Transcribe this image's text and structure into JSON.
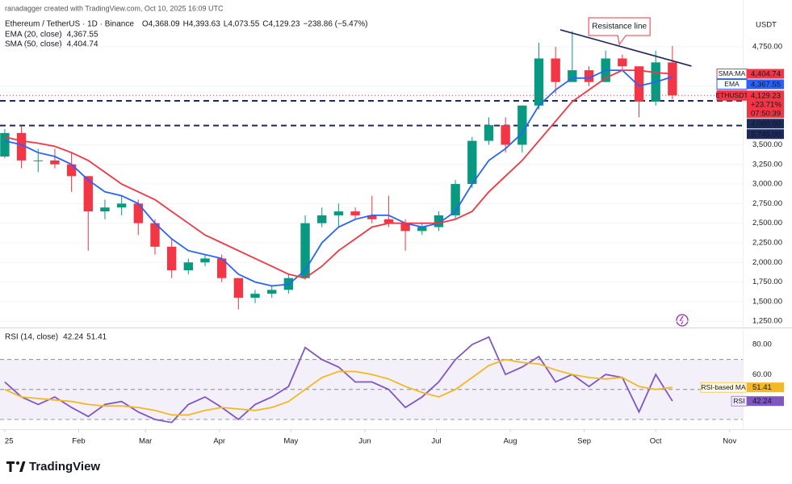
{
  "header": {
    "credit": "ranadagger created with TradingView.com, Oct 10, 2025 16:09 UTC"
  },
  "footer": {
    "brand": "TradingView"
  },
  "chart_data": [
    {
      "type": "candlestick",
      "title": "Ethereum / TetherUS · 1D · Binance",
      "ohlc_fields": [
        {
          "key": "O",
          "value": "4,368.09"
        },
        {
          "key": "H",
          "value": "4,393.63"
        },
        {
          "key": "L",
          "value": "4,073.55"
        },
        {
          "key": "C",
          "value": "4,129.23"
        }
      ],
      "change": "−238.86 (−5.47%)",
      "x": [
        0,
        7,
        14,
        21,
        28,
        35,
        42,
        49,
        56,
        63,
        70,
        77,
        84,
        91,
        98,
        105,
        112,
        119,
        126,
        133,
        140,
        147,
        154,
        161,
        168,
        175,
        182,
        189,
        196,
        203,
        210,
        217,
        224,
        231,
        238,
        245,
        252,
        259,
        266,
        273,
        280
      ],
      "open": [
        3350,
        3650,
        3300,
        3300,
        3250,
        3100,
        2650,
        2700,
        2750,
        2500,
        2200,
        1900,
        2000,
        2050,
        1800,
        1550,
        1600,
        1650,
        1800,
        2500,
        2600,
        2650,
        2600,
        2550,
        2500,
        2400,
        2450,
        2600,
        3000,
        3550,
        3750,
        3500,
        4000,
        4600,
        4300,
        4450,
        4300,
        4600,
        4500,
        4050,
        4550
      ],
      "high": [
        3700,
        3740,
        3450,
        3450,
        3400,
        3100,
        2800,
        2850,
        2800,
        2550,
        2300,
        2050,
        2100,
        2100,
        1800,
        1650,
        1700,
        1850,
        2600,
        2700,
        2750,
        2700,
        2850,
        2850,
        2550,
        2500,
        2650,
        3050,
        3600,
        3850,
        3850,
        4000,
        4800,
        4750,
        4950,
        4500,
        4700,
        4650,
        4500,
        4700,
        4760
      ],
      "low": [
        3330,
        3200,
        3150,
        3200,
        2900,
        2150,
        2550,
        2600,
        2350,
        2100,
        1800,
        1850,
        1950,
        1750,
        1400,
        1480,
        1550,
        1600,
        1780,
        2450,
        2450,
        2550,
        2500,
        2450,
        2150,
        2350,
        2400,
        2550,
        2950,
        3500,
        3400,
        3400,
        3950,
        4150,
        4300,
        4250,
        4300,
        4450,
        3850,
        4000,
        4080
      ],
      "close": [
        3650,
        3300,
        3300,
        3250,
        3100,
        2650,
        2700,
        2750,
        2500,
        2200,
        1900,
        2000,
        2050,
        1800,
        1550,
        1600,
        1650,
        1800,
        2500,
        2600,
        2650,
        2600,
        2550,
        2500,
        2400,
        2450,
        2600,
        3000,
        3550,
        3750,
        3500,
        4000,
        4600,
        4300,
        4450,
        4300,
        4600,
        4500,
        4050,
        4550,
        4129.23
      ],
      "up_color": "#089981",
      "down_color": "#f23645",
      "series": [
        {
          "name": "EMA (20, close)",
          "last_label": "4,367.55",
          "color": "#2962ff",
          "values": [
            3550,
            3500,
            3400,
            3350,
            3250,
            3050,
            2900,
            2850,
            2750,
            2500,
            2300,
            2150,
            2100,
            2050,
            1850,
            1750,
            1700,
            1720,
            1900,
            2250,
            2450,
            2550,
            2600,
            2600,
            2500,
            2450,
            2500,
            2650,
            3000,
            3300,
            3450,
            3650,
            4000,
            4200,
            4350,
            4350,
            4450,
            4450,
            4250,
            4300,
            4367.55
          ]
        },
        {
          "name": "SMA (50, close)",
          "last_label": "4,404.74",
          "color": "#f23645",
          "values": [
            3600,
            3550,
            3520,
            3480,
            3400,
            3300,
            3150,
            3000,
            2900,
            2800,
            2650,
            2500,
            2350,
            2250,
            2150,
            2050,
            1950,
            1850,
            1800,
            1950,
            2150,
            2300,
            2450,
            2500,
            2500,
            2500,
            2500,
            2550,
            2650,
            2900,
            3100,
            3300,
            3550,
            3800,
            4050,
            4200,
            4350,
            4450,
            4450,
            4420,
            4404.74
          ]
        }
      ],
      "axis_unit": "USDT",
      "xlim": [
        -2,
        309.5
      ],
      "ylim": [
        1180,
        5140
      ],
      "yticks": [
        {
          "value": 1250,
          "label": "1,250.00"
        },
        {
          "value": 1500,
          "label": "1,500.00"
        },
        {
          "value": 1750,
          "label": "1,750.00"
        },
        {
          "value": 2000,
          "label": "2,000.00"
        },
        {
          "value": 2250,
          "label": "2,250.00"
        },
        {
          "value": 2500,
          "label": "2,500.00"
        },
        {
          "value": 2750,
          "label": "2,750.00"
        },
        {
          "value": 3000,
          "label": "3,000.00"
        },
        {
          "value": 3250,
          "label": "3,250.00"
        },
        {
          "value": 3500,
          "label": "3,500.00"
        },
        {
          "value": 4250,
          "label": "4,250.00"
        },
        {
          "value": 4750,
          "label": "4,750.00"
        }
      ],
      "grid": true,
      "levels": [
        {
          "value": 4060,
          "label": "4,060.00"
        },
        {
          "value": 3745,
          "label": "3,745.00"
        }
      ],
      "trendline": {
        "label": "Resistance line",
        "x": [
          233,
          288
        ],
        "y": [
          4966,
          4503
        ],
        "color": "#1e2a5a"
      },
      "axis_tags": [
        {
          "name": "SMA:MA",
          "value": 4404.74,
          "label": "4,404.74",
          "sub": [],
          "color": "#f23645"
        },
        {
          "name": "EMA",
          "value": 4367.55,
          "label": "4,367.55",
          "sub": [],
          "color": "#2962ff"
        },
        {
          "name": "ETHUSDT",
          "value": 4129.23,
          "label": "4,129.23",
          "sub": [
            "+23.71%",
            "07:50:39"
          ],
          "color": "#f23645"
        }
      ]
    },
    {
      "type": "line",
      "title": "RSI (14, close)",
      "x": [
        0,
        7,
        14,
        21,
        28,
        35,
        42,
        49,
        56,
        63,
        70,
        77,
        84,
        91,
        98,
        105,
        112,
        119,
        126,
        133,
        140,
        147,
        154,
        161,
        168,
        175,
        182,
        189,
        196,
        203,
        210,
        217,
        224,
        231,
        238,
        245,
        252,
        259,
        266,
        273,
        280
      ],
      "series": [
        {
          "name": "RSI",
          "last_label": "42.24",
          "color": "#7e57c2",
          "values": [
            55,
            45,
            40,
            45,
            38,
            32,
            40,
            42,
            35,
            30,
            28,
            40,
            45,
            38,
            30,
            40,
            45,
            52,
            78,
            70,
            65,
            55,
            55,
            50,
            38,
            45,
            55,
            70,
            80,
            85,
            60,
            65,
            72,
            55,
            60,
            52,
            60,
            58,
            35,
            60,
            42.24
          ]
        },
        {
          "name": "RSI-based MA",
          "last_label": "51.41",
          "color": "#f2b825",
          "values": [
            50,
            45,
            44,
            43,
            42,
            40,
            39,
            39,
            38,
            36,
            33,
            33,
            36,
            38,
            37,
            36,
            38,
            42,
            50,
            58,
            62,
            62,
            60,
            57,
            52,
            48,
            45,
            50,
            58,
            66,
            70,
            68,
            67,
            63,
            60,
            58,
            57,
            58,
            52,
            50,
            51.41
          ]
        }
      ],
      "levels": [
        70,
        50,
        30
      ],
      "xlim": [
        -2,
        309.5
      ],
      "xticks": [
        {
          "value": 0,
          "label": "25"
        },
        {
          "value": 31,
          "label": "Feb"
        },
        {
          "value": 59,
          "label": "Mar"
        },
        {
          "value": 90,
          "label": "Apr"
        },
        {
          "value": 120,
          "label": "May"
        },
        {
          "value": 151,
          "label": "Jun"
        },
        {
          "value": 181,
          "label": "Jul"
        },
        {
          "value": 212,
          "label": "Aug"
        },
        {
          "value": 243,
          "label": "Sep"
        },
        {
          "value": 273,
          "label": "Oct"
        },
        {
          "value": 304,
          "label": "Nov"
        }
      ],
      "ylim": [
        24.6,
        89.2
      ],
      "yticks": [
        {
          "value": 60,
          "label": "60.00"
        },
        {
          "value": 80,
          "label": "80.00"
        }
      ]
    }
  ]
}
